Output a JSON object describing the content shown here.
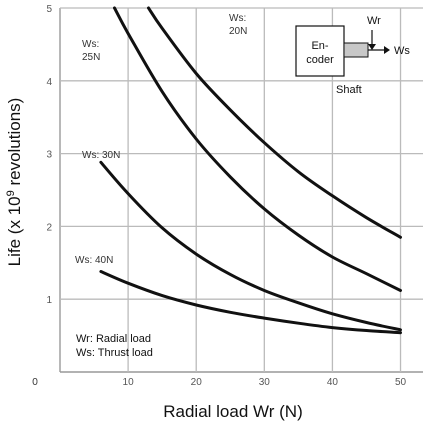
{
  "chart_data": {
    "type": "line",
    "xlabel": "Radial load Wr (N)",
    "ylabel_main": "Life (x 10",
    "ylabel_exp": "9",
    "ylabel_tail": " revolutions)",
    "xlim": [
      0,
      50
    ],
    "ylim": [
      0,
      5
    ],
    "x_ticks": [
      "0",
      "10",
      "20",
      "30",
      "40",
      "50"
    ],
    "y_ticks": [
      "0",
      "1",
      "2",
      "3",
      "4",
      "5"
    ],
    "grid": true,
    "series": [
      {
        "name": "Ws: 20N",
        "label_lines": [
          "Ws:",
          "20N"
        ],
        "x": [
          13,
          15,
          20,
          25,
          30,
          35,
          40,
          45,
          50
        ],
        "y": [
          5.0,
          4.72,
          4.1,
          3.6,
          3.15,
          2.75,
          2.42,
          2.12,
          1.85
        ]
      },
      {
        "name": "Ws: 25N",
        "label_lines": [
          "Ws:",
          "25N"
        ],
        "x": [
          8,
          10,
          15,
          20,
          25,
          30,
          35,
          40,
          45,
          50
        ],
        "y": [
          5.0,
          4.65,
          3.85,
          3.2,
          2.68,
          2.24,
          1.88,
          1.58,
          1.35,
          1.12
        ]
      },
      {
        "name": "Ws: 30N",
        "label_lines": [
          "Ws: 30N"
        ],
        "x": [
          6,
          10,
          15,
          20,
          25,
          30,
          35,
          40,
          45,
          50
        ],
        "y": [
          2.88,
          2.45,
          1.98,
          1.62,
          1.34,
          1.12,
          0.95,
          0.8,
          0.68,
          0.58
        ]
      },
      {
        "name": "Ws: 40N",
        "label_lines": [
          "Ws: 40N"
        ],
        "x": [
          6,
          10,
          15,
          20,
          25,
          30,
          35,
          40,
          45,
          50
        ],
        "y": [
          1.38,
          1.22,
          1.05,
          0.92,
          0.82,
          0.74,
          0.67,
          0.61,
          0.57,
          0.54
        ]
      }
    ],
    "legend_note": [
      "Wr:  Radial load",
      "Ws:  Thrust load"
    ],
    "inset": {
      "box_line1": "En-",
      "box_line2": "coder",
      "wr": "Wr",
      "ws": "Ws",
      "shaft": "Shaft"
    }
  }
}
